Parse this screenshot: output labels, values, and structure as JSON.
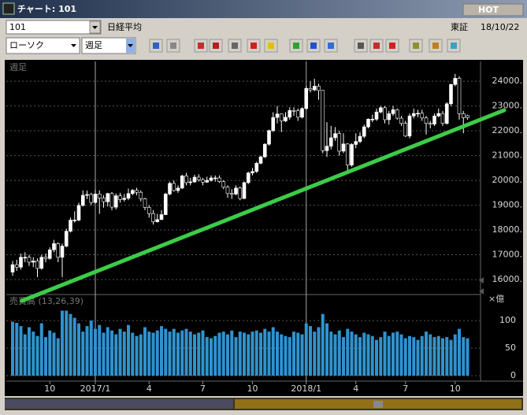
{
  "window": {
    "title": "チャート: 101",
    "hot": "HOT"
  },
  "toolbar": {
    "code": "101",
    "name": "日経平均",
    "exchange": "東証",
    "date": "18/10/22",
    "chart_style": "ローソク",
    "period": "週足"
  },
  "chart_data": [
    {
      "type": "candlestick",
      "label": "週足",
      "up_color": "#ffffff",
      "down_color": "#000000",
      "grid": true,
      "open": [
        16300,
        16600,
        16500,
        16900,
        16900,
        16700,
        16750,
        16450,
        16900,
        16850,
        17200,
        17450,
        16900,
        17350,
        17950,
        18400,
        18400,
        18990,
        19400,
        19430,
        19110,
        19450,
        19290,
        19140,
        19470,
        18920,
        19380,
        19230,
        19280,
        19470,
        19600,
        19520,
        19260,
        18910,
        18660,
        18330,
        18420,
        18620,
        19450,
        19880,
        19590,
        19690,
        20180,
        19910,
        19940,
        20130,
        20030,
        19930,
        20000,
        20100,
        20100,
        19950,
        19730,
        19470,
        19450,
        19690,
        19270,
        19910,
        20300,
        20360,
        20690,
        20950,
        21460,
        22010,
        22540,
        22680,
        22400,
        22550,
        22820,
        22810,
        22550,
        22900,
        23710,
        23650,
        23800,
        23630,
        21200,
        21380,
        21720,
        21890,
        21180,
        21470,
        20620,
        21450,
        21570,
        21780,
        22160,
        22470,
        22470,
        22760,
        22930,
        22450,
        22690,
        22850,
        22510,
        22300,
        21790,
        22600,
        22700,
        22710,
        22520,
        22300,
        22270,
        22600,
        22700,
        22300,
        23090,
        23870,
        24120,
        22690,
        22610
      ],
      "high": [
        16750,
        16800,
        17050,
        17100,
        17000,
        16900,
        16850,
        17000,
        17050,
        17300,
        17600,
        17500,
        17450,
        18050,
        18500,
        18750,
        19100,
        19600,
        19590,
        19500,
        19620,
        19600,
        19400,
        19500,
        19530,
        19470,
        19500,
        19450,
        19670,
        19650,
        19700,
        19600,
        19300,
        19000,
        18800,
        18650,
        18800,
        19500,
        19950,
        20000,
        19800,
        20230,
        20300,
        20100,
        20230,
        20250,
        20100,
        20150,
        20200,
        20200,
        20200,
        20000,
        19800,
        19650,
        19800,
        19750,
        19950,
        20350,
        20500,
        20750,
        21000,
        21500,
        22050,
        22750,
        23000,
        22700,
        22750,
        22950,
        22950,
        22900,
        22950,
        23800,
        24000,
        24100,
        23900,
        23650,
        22350,
        22200,
        22150,
        22000,
        21900,
        21500,
        21500,
        21900,
        21950,
        22250,
        22500,
        22650,
        22900,
        23000,
        23000,
        22800,
        23000,
        22900,
        22600,
        22400,
        22700,
        22900,
        22850,
        22850,
        22600,
        22400,
        22700,
        22900,
        22800,
        23150,
        23900,
        24300,
        24200,
        22800,
        22650
      ],
      "low": [
        16150,
        16350,
        16400,
        16700,
        16550,
        16500,
        16100,
        16400,
        16700,
        16800,
        17100,
        16700,
        16100,
        17300,
        17900,
        18300,
        18350,
        18950,
        19250,
        19000,
        19050,
        18650,
        18900,
        18950,
        18800,
        18830,
        19100,
        19150,
        19200,
        19400,
        19400,
        19150,
        18800,
        18500,
        18220,
        18300,
        18400,
        18600,
        19400,
        19550,
        19500,
        19650,
        19800,
        19800,
        19900,
        19950,
        19800,
        19900,
        19950,
        19950,
        19900,
        19650,
        19300,
        19250,
        19400,
        19200,
        19250,
        19850,
        20200,
        20300,
        20650,
        20900,
        21400,
        21950,
        22300,
        21950,
        22350,
        22450,
        22600,
        22400,
        22500,
        22850,
        23550,
        23600,
        23250,
        21100,
        20950,
        21250,
        21600,
        21000,
        21100,
        20350,
        20550,
        21300,
        21500,
        21700,
        22100,
        22350,
        22400,
        22700,
        22300,
        22250,
        22600,
        22450,
        22200,
        21750,
        21700,
        22500,
        22550,
        22400,
        21850,
        22100,
        22200,
        22550,
        22200,
        22250,
        23000,
        23800,
        22450,
        21900,
        22450
      ],
      "close": [
        16600,
        16500,
        16900,
        16900,
        16700,
        16750,
        16450,
        16900,
        16850,
        17200,
        17450,
        16900,
        17350,
        17950,
        18400,
        18400,
        18990,
        19400,
        19430,
        19110,
        19450,
        19290,
        19140,
        19470,
        18920,
        19380,
        19230,
        19280,
        19470,
        19600,
        19520,
        19260,
        18910,
        18660,
        18330,
        18420,
        18620,
        19450,
        19880,
        19590,
        19690,
        20180,
        19910,
        19940,
        20130,
        20030,
        19930,
        20000,
        20100,
        20100,
        19950,
        19730,
        19470,
        19450,
        19690,
        19270,
        19910,
        20300,
        20360,
        20690,
        20950,
        21460,
        22010,
        22540,
        22680,
        22400,
        22550,
        22820,
        22810,
        22550,
        22900,
        23710,
        23650,
        23800,
        23630,
        21200,
        21380,
        21720,
        21890,
        21180,
        21470,
        20620,
        21450,
        21570,
        21780,
        22160,
        22470,
        22470,
        22760,
        22930,
        22450,
        22690,
        22850,
        22510,
        22300,
        21790,
        22600,
        22700,
        22710,
        22520,
        22300,
        22270,
        22600,
        22700,
        22300,
        23090,
        23870,
        24120,
        22690,
        22530,
        22530
      ],
      "ylim": [
        15460,
        24800
      ],
      "yticks": [
        {
          "value": 16000,
          "label": "16000."
        },
        {
          "value": 17000,
          "label": "17000."
        },
        {
          "value": 18000,
          "label": "18000."
        },
        {
          "value": 19000,
          "label": "19000."
        },
        {
          "value": 20000,
          "label": "20000."
        },
        {
          "value": 21000,
          "label": "21000."
        },
        {
          "value": 22000,
          "label": "22000."
        },
        {
          "value": 23000,
          "label": "23000."
        },
        {
          "value": 24000,
          "label": "24000."
        }
      ],
      "xticks": [
        {
          "value": 9,
          "label": "10"
        },
        {
          "value": 20,
          "label": "2017/1"
        },
        {
          "value": 33,
          "label": "4"
        },
        {
          "value": 46,
          "label": "7"
        },
        {
          "value": 58,
          "label": "10"
        },
        {
          "value": 71,
          "label": "2018/1"
        },
        {
          "value": 83,
          "label": "4"
        },
        {
          "value": 95,
          "label": "7"
        },
        {
          "value": 107,
          "label": "10"
        }
      ]
    },
    {
      "type": "bar",
      "label": "売買高 (13,26,39)",
      "unit": "×億",
      "color": "#2f93cf",
      "grid": true,
      "values": [
        98,
        96,
        90,
        75,
        88,
        80,
        72,
        95,
        70,
        82,
        78,
        68,
        118,
        118,
        112,
        105,
        95,
        80,
        90,
        100,
        85,
        92,
        78,
        88,
        82,
        75,
        85,
        80,
        92,
        78,
        72,
        75,
        88,
        80,
        78,
        82,
        90,
        85,
        80,
        85,
        78,
        82,
        85,
        80,
        75,
        78,
        82,
        70,
        68,
        72,
        78,
        80,
        75,
        82,
        70,
        80,
        78,
        75,
        80,
        82,
        78,
        85,
        80,
        88,
        80,
        75,
        72,
        70,
        80,
        78,
        75,
        95,
        90,
        80,
        88,
        112,
        95,
        80,
        75,
        82,
        70,
        85,
        80,
        75,
        70,
        78,
        75,
        72,
        65,
        70,
        80,
        72,
        78,
        80,
        75,
        68,
        72,
        70,
        65,
        72,
        80,
        75,
        70,
        72,
        68,
        70,
        65,
        75,
        85,
        70,
        68
      ],
      "ylim": [
        -7,
        143
      ],
      "yticks": [
        0,
        50,
        100
      ]
    }
  ]
}
